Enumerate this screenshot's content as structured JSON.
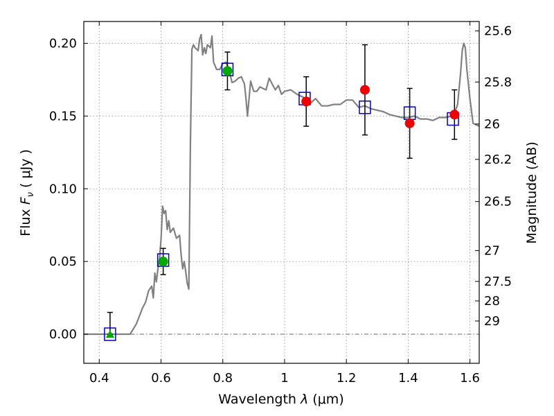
{
  "chart_data": {
    "type": "scatter",
    "title": "",
    "xlabel_prefix": "Wavelength  ",
    "xlabel_symbol": "λ",
    "xlabel_suffix": " (μm)",
    "ylabel_prefix": "Flux  ",
    "ylabel_symbol": "F",
    "ylabel_subscript": "ν",
    "ylabel_suffix": "  ( μJy )",
    "y2label": "Magnitude (AB)",
    "xlim": [
      0.35,
      1.63
    ],
    "ylim": [
      -0.02,
      0.215
    ],
    "grid": true,
    "xticks": [
      0.4,
      0.6,
      0.8,
      1.0,
      1.2,
      1.4,
      1.6
    ],
    "xtick_labels": [
      "0.4",
      "0.6",
      "0.8",
      "1",
      "1.2",
      "1.4",
      "1.6"
    ],
    "yticks": [
      0.0,
      0.05,
      0.1,
      0.15,
      0.2
    ],
    "ytick_labels": [
      "0.00",
      "0.05",
      "0.10",
      "0.15",
      "0.20"
    ],
    "y2ticks": [
      {
        "label": "25.6",
        "flux": 0.2085
      },
      {
        "label": "25.8",
        "flux": 0.1734
      },
      {
        "label": "26",
        "flux": 0.1445
      },
      {
        "label": "26.2",
        "flux": 0.1202
      },
      {
        "label": "26.5",
        "flux": 0.0912
      },
      {
        "label": "27",
        "flux": 0.0575
      },
      {
        "label": "27.5",
        "flux": 0.0363
      },
      {
        "label": "28",
        "flux": 0.0229
      },
      {
        "label": "29",
        "flux": 0.0091
      }
    ],
    "colors": {
      "model": "#808080",
      "model_points": "#0000cc",
      "green_points": "#00aa00",
      "red_points": "#ee0000",
      "errorbars": "#000000",
      "zero_line": "#555555",
      "grid": "#888888"
    },
    "series": [
      {
        "name": "model spectrum",
        "kind": "line",
        "x": [
          0.35,
          0.5,
          0.52,
          0.54,
          0.55,
          0.56,
          0.57,
          0.575,
          0.58,
          0.585,
          0.59,
          0.595,
          0.6,
          0.605,
          0.61,
          0.615,
          0.62,
          0.625,
          0.63,
          0.64,
          0.65,
          0.66,
          0.665,
          0.67,
          0.675,
          0.68,
          0.685,
          0.69,
          0.695,
          0.7,
          0.705,
          0.71,
          0.72,
          0.725,
          0.73,
          0.735,
          0.74,
          0.745,
          0.75,
          0.76,
          0.765,
          0.77,
          0.78,
          0.79,
          0.8,
          0.81,
          0.82,
          0.83,
          0.84,
          0.85,
          0.86,
          0.87,
          0.875,
          0.88,
          0.89,
          0.9,
          0.91,
          0.92,
          0.93,
          0.94,
          0.95,
          0.96,
          0.97,
          0.98,
          0.99,
          1.0,
          1.02,
          1.04,
          1.06,
          1.08,
          1.1,
          1.12,
          1.14,
          1.16,
          1.18,
          1.2,
          1.22,
          1.24,
          1.26,
          1.28,
          1.3,
          1.32,
          1.34,
          1.36,
          1.38,
          1.4,
          1.42,
          1.44,
          1.46,
          1.48,
          1.5,
          1.52,
          1.54,
          1.55,
          1.56,
          1.57,
          1.575,
          1.58,
          1.585,
          1.59,
          1.6,
          1.61,
          1.63
        ],
        "y": [
          0.0,
          0.0,
          0.007,
          0.018,
          0.022,
          0.03,
          0.033,
          0.025,
          0.042,
          0.036,
          0.045,
          0.052,
          0.065,
          0.088,
          0.083,
          0.085,
          0.072,
          0.078,
          0.07,
          0.073,
          0.066,
          0.068,
          0.055,
          0.045,
          0.05,
          0.043,
          0.035,
          0.031,
          0.129,
          0.196,
          0.199,
          0.197,
          0.195,
          0.203,
          0.206,
          0.192,
          0.197,
          0.193,
          0.199,
          0.197,
          0.205,
          0.187,
          0.182,
          0.182,
          0.186,
          0.187,
          0.182,
          0.173,
          0.174,
          0.176,
          0.177,
          0.172,
          0.162,
          0.15,
          0.174,
          0.167,
          0.167,
          0.17,
          0.169,
          0.168,
          0.176,
          0.172,
          0.168,
          0.171,
          0.165,
          0.167,
          0.168,
          0.165,
          0.163,
          0.158,
          0.162,
          0.157,
          0.157,
          0.158,
          0.158,
          0.161,
          0.161,
          0.156,
          0.157,
          0.155,
          0.154,
          0.153,
          0.151,
          0.15,
          0.149,
          0.149,
          0.15,
          0.148,
          0.148,
          0.147,
          0.149,
          0.149,
          0.15,
          0.152,
          0.158,
          0.18,
          0.195,
          0.2,
          0.197,
          0.182,
          0.162,
          0.145,
          0.143
        ]
      },
      {
        "name": "model photometry",
        "kind": "square",
        "x": [
          0.435,
          0.607,
          0.815,
          1.065,
          1.26,
          1.405,
          1.545
        ],
        "y": [
          0.0,
          0.051,
          0.182,
          0.162,
          0.156,
          0.152,
          0.148
        ]
      },
      {
        "name": "observed (detections)",
        "kind": "circle",
        "color_key": "green_points",
        "x": [
          0.607,
          0.815
        ],
        "y": [
          0.05,
          0.181
        ],
        "yerr": [
          0.009,
          0.013
        ]
      },
      {
        "name": "observed (non-detection)",
        "kind": "triangle",
        "color_key": "green_points",
        "x": [
          0.435
        ],
        "y": [
          0.0
        ],
        "yerr_upper": [
          0.015
        ]
      },
      {
        "name": "observed (red)",
        "kind": "circle",
        "color_key": "red_points",
        "x": [
          1.07,
          1.26,
          1.405,
          1.55
        ],
        "y": [
          0.16,
          0.168,
          0.145,
          0.151
        ],
        "yerr": [
          0.017,
          0.031,
          0.024,
          0.017
        ]
      }
    ]
  }
}
